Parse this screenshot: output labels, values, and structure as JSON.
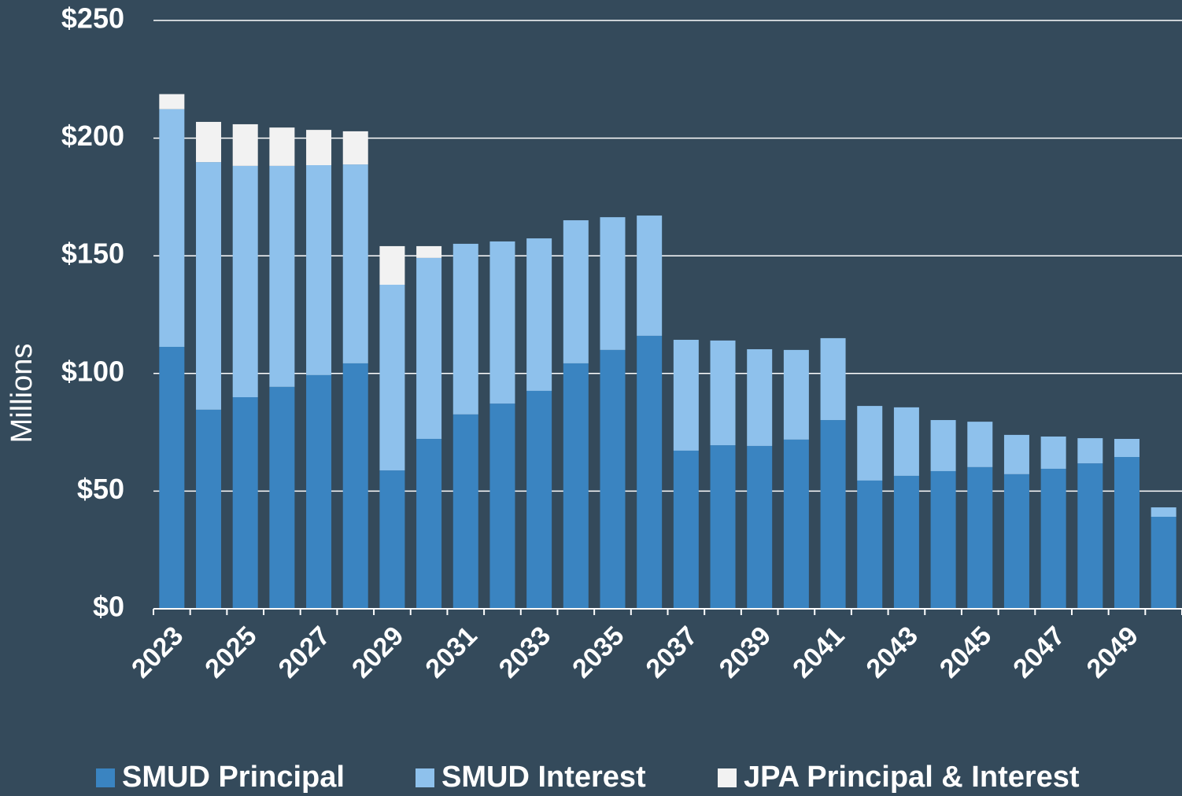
{
  "chart_data": {
    "type": "stacked_bar",
    "y_label": "Millions",
    "categories": [
      "2023",
      null,
      "2025",
      null,
      "2027",
      null,
      "2029",
      null,
      "2031",
      null,
      "2033",
      null,
      "2035",
      null,
      "2037",
      null,
      "2039",
      null,
      "2041",
      null,
      "2043",
      null,
      "2045",
      null,
      "2047",
      null,
      "2049",
      null
    ],
    "series": [
      {
        "name": "SMUD Principal",
        "color": "#3a84c1",
        "values": [
          111.3,
          84.6,
          89.9,
          94.3,
          99.3,
          104.3,
          58.8,
          72.2,
          82.6,
          87.2,
          92.6,
          104.3,
          110.0,
          116.0,
          67.2,
          69.5,
          69.2,
          71.9,
          80.2,
          54.5,
          56.5,
          58.5,
          60.2,
          57.2,
          59.5,
          61.8,
          64.5,
          39.1
        ]
      },
      {
        "name": "SMUD Interest",
        "color": "#8ec1ec",
        "values": [
          101.0,
          105.2,
          98.3,
          93.9,
          89.2,
          84.5,
          78.9,
          76.9,
          72.5,
          68.9,
          64.8,
          60.8,
          56.4,
          51.1,
          47.1,
          44.5,
          41.1,
          38.1,
          34.8,
          31.7,
          29.1,
          21.7,
          19.3,
          16.7,
          13.7,
          10.7,
          7.7,
          4.0
        ]
      },
      {
        "name": "JPA Principal & Interest",
        "color": "#f2f2f2",
        "values": [
          6.4,
          17.1,
          17.7,
          16.3,
          15.0,
          14.1,
          16.4,
          5.0,
          0,
          0,
          0,
          0,
          0,
          0,
          0,
          0,
          0,
          0,
          0,
          0,
          0,
          0,
          0,
          0,
          0,
          0,
          0,
          0
        ]
      }
    ],
    "ylim": [
      0,
      250
    ],
    "yticks": [
      {
        "value": 0,
        "label": "$0"
      },
      {
        "value": 50,
        "label": "$50"
      },
      {
        "value": 100,
        "label": "$100"
      },
      {
        "value": 150,
        "label": "$150"
      },
      {
        "value": 200,
        "label": "$200"
      },
      {
        "value": 250,
        "label": "$250"
      }
    ],
    "grid": true,
    "legend": "bottom"
  }
}
